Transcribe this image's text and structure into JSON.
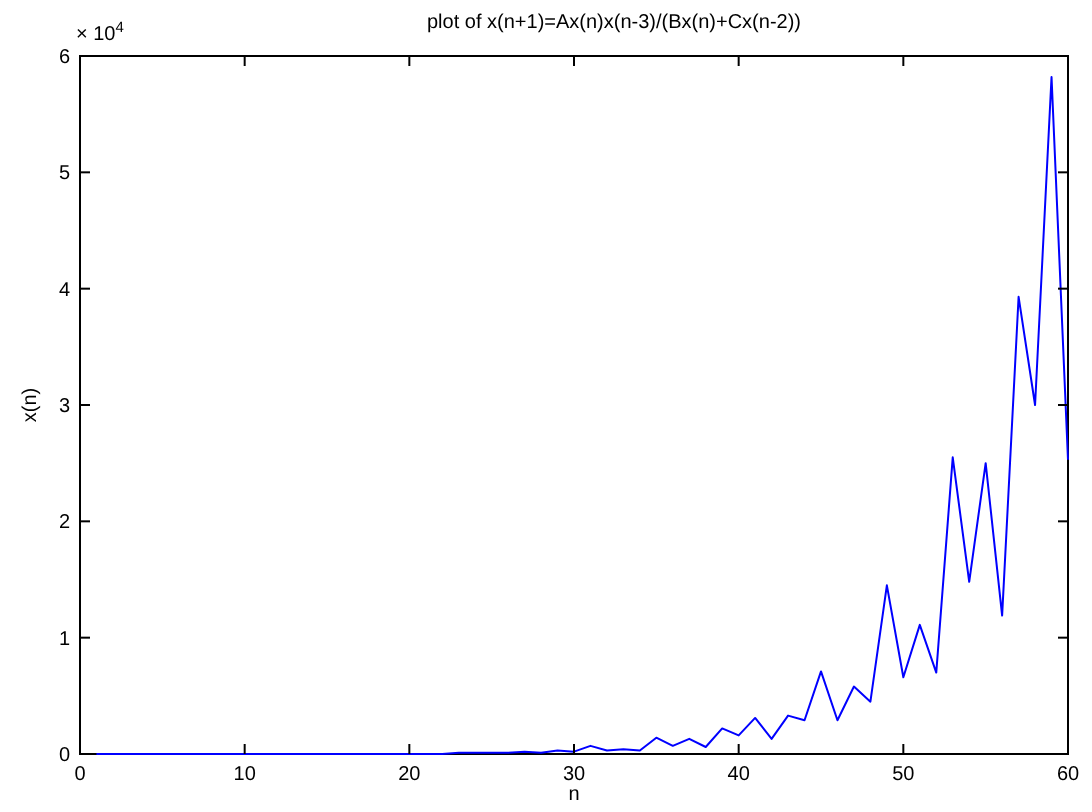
{
  "chart_data": {
    "type": "line",
    "title": "plot of x(n+1)=Ax(n)x(n-3)/(Bx(n)+Cx(n-2))",
    "xlabel": "n",
    "ylabel": "x(n)",
    "annotations": [
      "× 10$^{4}$"
    ],
    "x": [
      1,
      2,
      3,
      4,
      5,
      6,
      7,
      8,
      9,
      10,
      11,
      12,
      13,
      14,
      15,
      16,
      17,
      18,
      19,
      20,
      21,
      22,
      23,
      24,
      25,
      26,
      27,
      28,
      29,
      30,
      31,
      32,
      33,
      34,
      35,
      36,
      37,
      38,
      39,
      40,
      41,
      42,
      43,
      44,
      45,
      46,
      47,
      48,
      49,
      50,
      51,
      52,
      53,
      54,
      55,
      56,
      57,
      58,
      59,
      60
    ],
    "series": [
      {
        "color": "#0000ff",
        "values": [
          0,
          0,
          0,
          0,
          0,
          0,
          0,
          0,
          0,
          0,
          0,
          0,
          0,
          0,
          0,
          0,
          0,
          0,
          0,
          0,
          0,
          0,
          0.01,
          0.01,
          0.01,
          0.01,
          0.02,
          0.01,
          0.03,
          0.02,
          0.07,
          0.03,
          0.04,
          0.03,
          0.14,
          0.07,
          0.13,
          0.06,
          0.22,
          0.16,
          0.31,
          0.13,
          0.33,
          0.29,
          0.71,
          0.29,
          0.58,
          0.45,
          1.45,
          0.66,
          1.11,
          0.7,
          2.55,
          1.48,
          2.5,
          1.19,
          3.93,
          3.0,
          5.82,
          2.53
        ]
      }
    ],
    "xlim": [
      0,
      60
    ],
    "xticks": [
      0,
      10,
      20,
      30,
      40,
      50,
      60
    ],
    "ylim": [
      0,
      6
    ],
    "yticks": [
      0,
      1,
      2,
      3,
      4,
      5,
      6
    ],
    "grid": false,
    "marker": "none",
    "line_style": "solid"
  }
}
